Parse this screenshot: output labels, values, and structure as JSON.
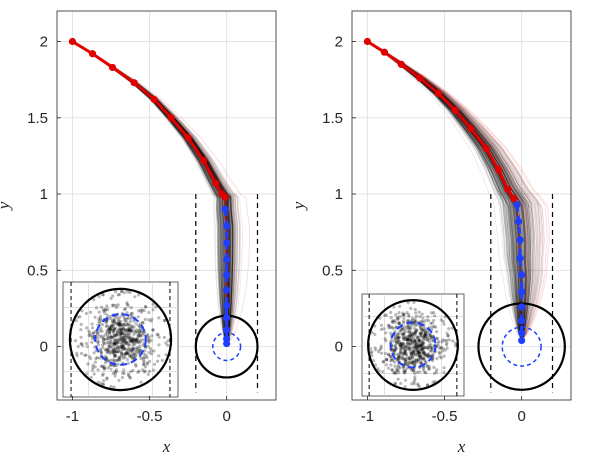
{
  "chart_data": [
    {
      "type": "line",
      "title": "",
      "xlabel": "x",
      "ylabel": "y",
      "xlim": [
        -1.1,
        0.32
      ],
      "ylim": [
        -0.35,
        2.2
      ],
      "xticks": [
        -1,
        -0.5,
        0
      ],
      "xtick_labels": [
        "-1",
        "-0.5",
        "0"
      ],
      "yticks": [
        0,
        0.5,
        1,
        1.5,
        2
      ],
      "ytick_labels": [
        "0",
        "0.5",
        "1",
        "1.5",
        "2"
      ],
      "grid": true,
      "legend": "none",
      "series": [
        {
          "color": "#e00000",
          "marker": "circle",
          "style": "solid",
          "x": [
            -1.0,
            -0.87,
            -0.74,
            -0.6,
            -0.47,
            -0.36,
            -0.25,
            -0.15,
            -0.07,
            -0.03,
            -0.01
          ],
          "y": [
            2.0,
            1.92,
            1.83,
            1.73,
            1.62,
            1.5,
            1.37,
            1.22,
            1.07,
            1.0,
            0.98
          ]
        },
        {
          "color": "#1f3fff",
          "marker": "circle",
          "style": "dashed",
          "x": [
            -0.01,
            0.0,
            0.0,
            0.0,
            0.0,
            0.0,
            0.0,
            0.0,
            0.0,
            0.0,
            0.0
          ],
          "y": [
            0.9,
            0.79,
            0.68,
            0.57,
            0.47,
            0.37,
            0.27,
            0.19,
            0.11,
            0.05,
            0.02
          ]
        }
      ],
      "circle": {
        "cx": 0,
        "cy": 0,
        "r": 0.2
      },
      "bounds_x": [
        -0.2,
        0.2
      ],
      "bounds_y_top": 1.0,
      "inset_scatter_points": 650,
      "spread": 0.05
    },
    {
      "type": "line",
      "title": "",
      "xlabel": "x",
      "ylabel": "y",
      "xlim": [
        -1.1,
        0.32
      ],
      "ylim": [
        -0.35,
        2.2
      ],
      "xticks": [
        -1,
        -0.5,
        0
      ],
      "xtick_labels": [
        "-1",
        "-0.5",
        "0"
      ],
      "yticks": [
        0,
        0.5,
        1,
        1.5,
        2
      ],
      "ytick_labels": [
        "0",
        "0.5",
        "1",
        "1.5",
        "2"
      ],
      "grid": true,
      "legend": "none",
      "series": [
        {
          "color": "#e00000",
          "marker": "circle",
          "style": "solid",
          "x": [
            -1.0,
            -0.89,
            -0.78,
            -0.66,
            -0.54,
            -0.43,
            -0.33,
            -0.23,
            -0.15,
            -0.09,
            -0.05,
            -0.03
          ],
          "y": [
            2.0,
            1.93,
            1.85,
            1.76,
            1.66,
            1.55,
            1.43,
            1.3,
            1.16,
            1.03,
            0.97,
            0.93
          ]
        },
        {
          "color": "#1f3fff",
          "marker": "circle",
          "style": "dashed",
          "x": [
            -0.03,
            -0.02,
            -0.01,
            -0.01,
            0.0,
            0.0,
            0.0,
            0.0,
            0.0,
            0.0
          ],
          "y": [
            0.93,
            0.82,
            0.7,
            0.58,
            0.47,
            0.36,
            0.26,
            0.17,
            0.09,
            0.04
          ]
        }
      ],
      "circle": {
        "cx": 0,
        "cy": 0,
        "r": 0.28
      },
      "bounds_x": [
        -0.2,
        0.2
      ],
      "bounds_y_top": 1.0,
      "inset_scatter_points": 650,
      "spread": 0.08
    }
  ]
}
